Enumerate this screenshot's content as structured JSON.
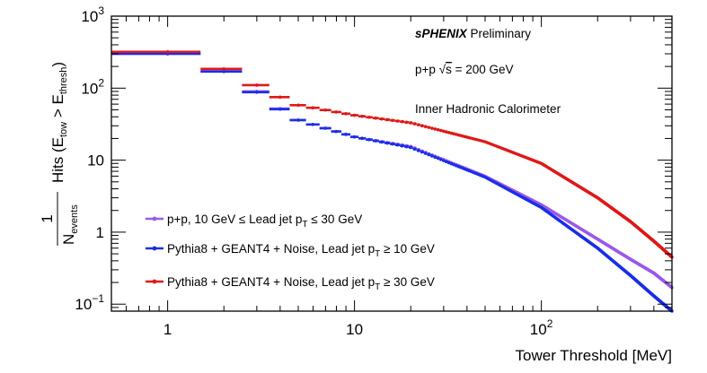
{
  "chart_data": {
    "type": "scatter",
    "title": "",
    "xlabel": "Tower Threshold [MeV]",
    "ylabel": {
      "fraction_numerator": "1",
      "fraction_denominator": "N",
      "fraction_denominator_sub": "events",
      "main": "Hits (E",
      "sub1": "tow",
      "mid": " > E",
      "sub2": "thresh",
      "end": ")"
    },
    "x_scale": "log",
    "y_scale": "log",
    "xlim": [
      0.5,
      500
    ],
    "ylim": [
      0.08,
      1000
    ],
    "x_ticks": [
      {
        "value": 1,
        "label": "1"
      },
      {
        "value": 10,
        "label": "10"
      },
      {
        "value": 100,
        "label": "10",
        "exp": "2"
      }
    ],
    "y_ticks": [
      {
        "value": 0.1,
        "label": "10",
        "exp": "−1"
      },
      {
        "value": 1,
        "label": "1",
        "exp": ""
      },
      {
        "value": 10,
        "label": "10",
        "exp": ""
      },
      {
        "value": 100,
        "label": "10",
        "exp": "2"
      },
      {
        "value": 1000,
        "label": "10",
        "exp": "3"
      }
    ],
    "grid": false,
    "annotations": {
      "experiment_bold": "sPHENIX",
      "experiment_rest": " Preliminary",
      "collision_pre": "p+p ",
      "collision_sqrt": "√",
      "collision_s": "s",
      "collision_post": " = 200 GeV",
      "detector": "Inner Hadronic Calorimeter"
    },
    "legend_position": "bottom-left",
    "series": [
      {
        "legend": {
          "pre": "p+p, 10 GeV ≤ Lead jet p",
          "sub": "T",
          "post": " ≤ 30 GeV"
        },
        "color": "#9b59e8",
        "knots": [
          [
            0.5,
            300
          ],
          [
            1.5,
            300
          ],
          [
            2,
            172
          ],
          [
            3,
            90
          ],
          [
            4,
            52
          ],
          [
            5,
            36
          ],
          [
            10,
            21
          ],
          [
            20,
            15.5
          ],
          [
            50,
            6
          ],
          [
            100,
            2.4
          ],
          [
            200,
            0.8
          ],
          [
            300,
            0.42
          ],
          [
            400,
            0.27
          ],
          [
            500,
            0.17
          ]
        ]
      },
      {
        "legend": {
          "pre": "Pythia8 + GEANT4 + Noise, Lead jet p",
          "sub": "T",
          "post": " ≥ 10 GeV"
        },
        "color": "#1a2ee8",
        "knots": [
          [
            0.5,
            300
          ],
          [
            1.5,
            300
          ],
          [
            2,
            170
          ],
          [
            3,
            88
          ],
          [
            4,
            51
          ],
          [
            5,
            36
          ],
          [
            10,
            21
          ],
          [
            20,
            15
          ],
          [
            50,
            5.8
          ],
          [
            100,
            2.2
          ],
          [
            200,
            0.6
          ],
          [
            300,
            0.25
          ],
          [
            400,
            0.13
          ],
          [
            500,
            0.08
          ]
        ]
      },
      {
        "legend": {
          "pre": "Pythia8 + GEANT4 + Noise, Lead jet p",
          "sub": "T",
          "post": " ≥ 30 GeV"
        },
        "color": "#e01818",
        "knots": [
          [
            0.5,
            320
          ],
          [
            1.5,
            320
          ],
          [
            2,
            185
          ],
          [
            3,
            110
          ],
          [
            4,
            75
          ],
          [
            5,
            58
          ],
          [
            10,
            42
          ],
          [
            20,
            33
          ],
          [
            50,
            18
          ],
          [
            100,
            9
          ],
          [
            200,
            3
          ],
          [
            300,
            1.4
          ],
          [
            400,
            0.75
          ],
          [
            500,
            0.45
          ]
        ]
      }
    ]
  }
}
